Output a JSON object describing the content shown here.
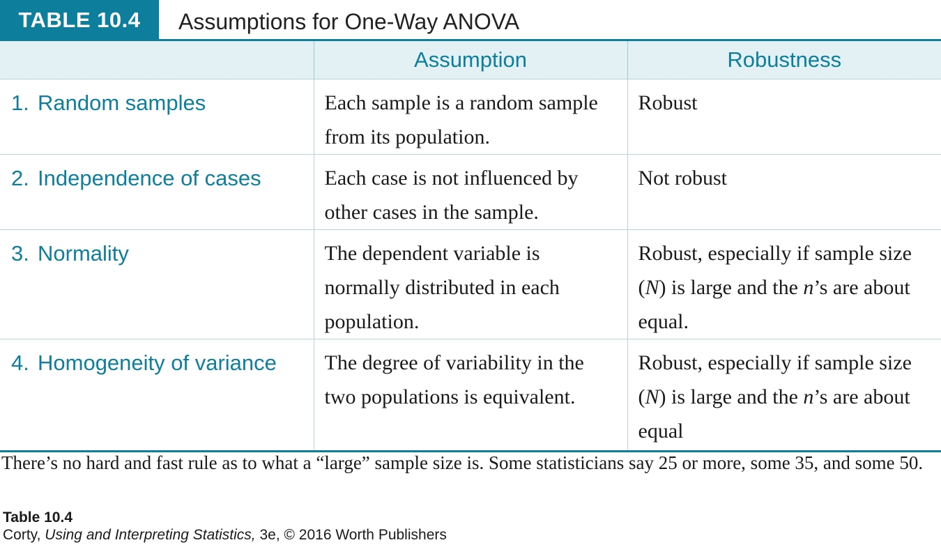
{
  "header": {
    "label": "TABLE 10.4",
    "title": "Assumptions for One-Way ANOVA"
  },
  "columns": [
    "",
    "Assumption",
    "Robustness"
  ],
  "rows": [
    {
      "num": "1.",
      "name": "Random samples",
      "assumption": "Each sample is a random sample from its population.",
      "robustness": "Robust"
    },
    {
      "num": "2.",
      "name": "Independence of cases",
      "assumption": "Each case is not influenced by other cases in the sample.",
      "robustness": "Not robust"
    },
    {
      "num": "3.",
      "name": "Normality",
      "assumption": "The dependent variable is normally distributed in each population.",
      "robustness": {
        "a": "Robust, especially if sample size (",
        "b": "N",
        "c": ") is large and the ",
        "d": "n",
        "e": "’s are about equal."
      }
    },
    {
      "num": "4.",
      "name": "Homogeneity of variance",
      "assumption": "The degree of variability in the two populations is equivalent.",
      "robustness": {
        "a": "Robust, especially if sample size (",
        "b": "N",
        "c": ") is large and the ",
        "d": "n",
        "e": "’s are about equal"
      }
    }
  ],
  "footnote": "There’s no hard and fast rule as to what a “large” sample size is. Some statisticians say 25 or more, some 35, and some 50.",
  "caption": {
    "title": "Table 10.4",
    "author": "Corty,",
    "book": "Using and Interpreting Statistics,",
    "rest": "3e, © 2016 Worth Publishers"
  }
}
